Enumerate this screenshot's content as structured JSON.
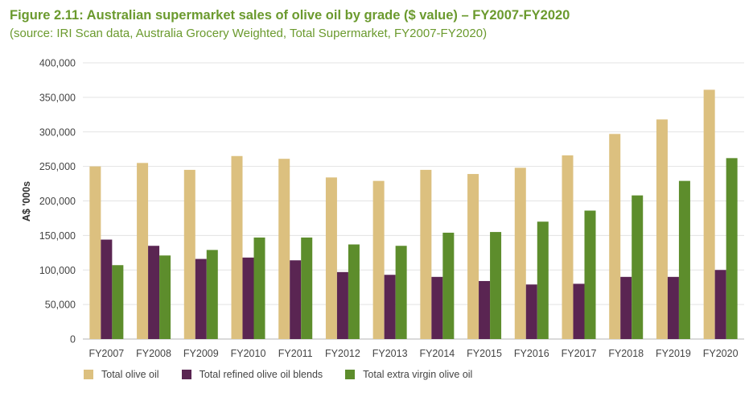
{
  "title": "Figure 2.11: Australian supermarket sales of olive oil by grade ($ value) – FY2007-FY2020",
  "subtitle": "(source: IRI Scan data, Australia Grocery Weighted, Total Supermarket, FY2007-FY2020)",
  "chart_data": {
    "type": "bar",
    "ylabel": "A$ '000s",
    "xlabel": "",
    "ylim": [
      0,
      400000
    ],
    "yticks": [
      0,
      50000,
      100000,
      150000,
      200000,
      250000,
      300000,
      350000,
      400000
    ],
    "ytick_labels": [
      "0",
      "50,000",
      "100,000",
      "150,000",
      "200,000",
      "250,000",
      "300,000",
      "350,000",
      "400,000"
    ],
    "grid": true,
    "legend": "bottom",
    "categories": [
      "FY2007",
      "FY2008",
      "FY2009",
      "FY2010",
      "FY2011",
      "FY2012",
      "FY2013",
      "FY2014",
      "FY2015",
      "FY2016",
      "FY2017",
      "FY2018",
      "FY2019",
      "FY2020"
    ],
    "series": [
      {
        "name": "Total olive oil",
        "color": "#dcc07f",
        "values": [
          250000,
          255000,
          245000,
          265000,
          261000,
          234000,
          229000,
          245000,
          239000,
          248000,
          266000,
          297000,
          318000,
          361000
        ]
      },
      {
        "name": "Total refined olive oil blends",
        "color": "#5a2552",
        "values": [
          144000,
          135000,
          116000,
          118000,
          114000,
          97000,
          93000,
          90000,
          84000,
          79000,
          80000,
          90000,
          90000,
          100000
        ]
      },
      {
        "name": "Total extra virgin olive oil",
        "color": "#5d8d2c",
        "values": [
          107000,
          121000,
          129000,
          147000,
          147000,
          137000,
          135000,
          154000,
          155000,
          170000,
          186000,
          208000,
          229000,
          262000
        ]
      }
    ]
  }
}
